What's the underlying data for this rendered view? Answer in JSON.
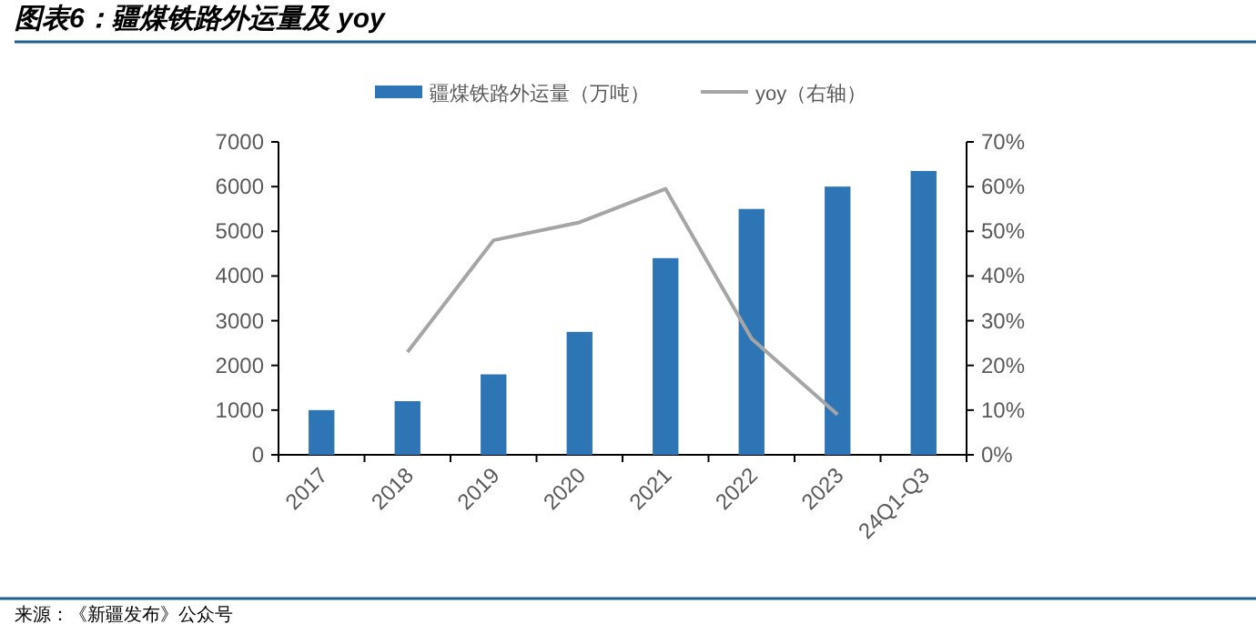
{
  "chart_data": {
    "type": "bar",
    "title": "图表6：疆煤铁路外运量及 yoy",
    "categories": [
      "2017",
      "2018",
      "2019",
      "2020",
      "2021",
      "2022",
      "2023",
      "24Q1-Q3"
    ],
    "series": [
      {
        "name": "疆煤铁路外运量（万吨）",
        "color": "#2e75b6",
        "values": [
          1000,
          1200,
          1800,
          2750,
          4400,
          5500,
          6000,
          6350
        ]
      },
      {
        "name": "yoy（右轴）",
        "type": "line",
        "axis": "y2",
        "color": "#a5a5a5",
        "values": [
          null,
          23,
          48,
          52,
          59.5,
          26,
          9,
          null
        ]
      }
    ],
    "ylim": [
      0,
      7000
    ],
    "yticks": [
      0,
      1000,
      2000,
      3000,
      4000,
      5000,
      6000,
      7000
    ],
    "y2lim": [
      0,
      70
    ],
    "y2ticks": [
      {
        "value": 0,
        "label": "0%"
      },
      {
        "value": 10,
        "label": "10%"
      },
      {
        "value": 20,
        "label": "20%"
      },
      {
        "value": 30,
        "label": "30%"
      },
      {
        "value": 40,
        "label": "40%"
      },
      {
        "value": 50,
        "label": "50%"
      },
      {
        "value": 60,
        "label": "60%"
      },
      {
        "value": 70,
        "label": "70%"
      }
    ],
    "legend": "top",
    "grid": false,
    "annotations": [
      "来源：《新疆发布》公众号"
    ]
  }
}
